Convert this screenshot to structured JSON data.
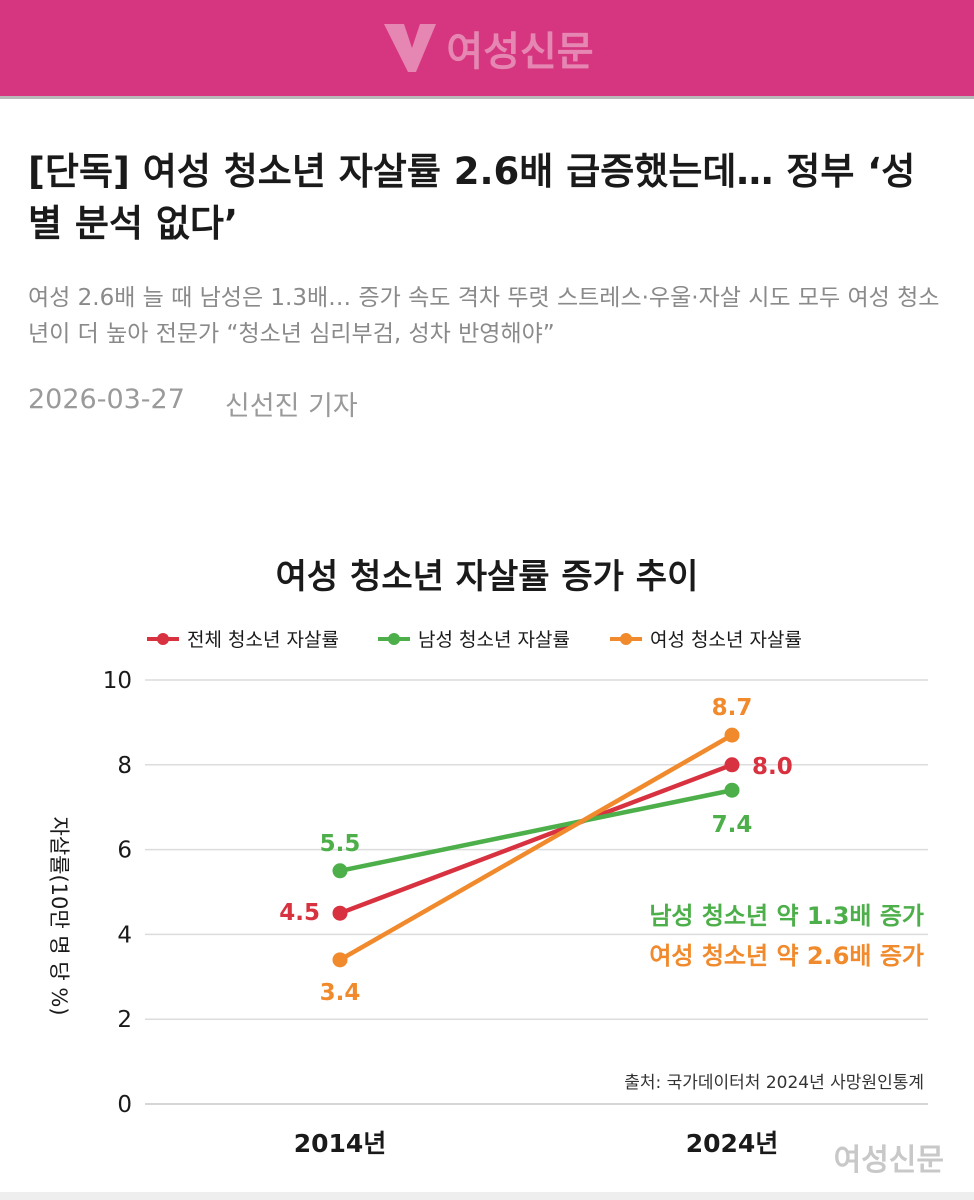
{
  "header": {
    "brand_name": "여성신문"
  },
  "article": {
    "headline": "[단독] 여성 청소년 자살률 2.6배 급증했는데… 정부 ‘성별 분석 없다’",
    "subheadline": "여성 2.6배 늘 때 남성은 1.3배… 증가 속도 격차 뚜렷 스트레스·우울·자살 시도 모두 여성 청소년이 더 높아 전문가 “청소년 심리부검, 성차 반영해야”",
    "date": "2026-03-27",
    "author": "신선진 기자"
  },
  "chart_data": {
    "type": "line",
    "title": "여성 청소년 자살률 증가 추이",
    "categories": [
      "2014년",
      "2024년"
    ],
    "ylabel": "자살률(10만 명 당 %)",
    "ylim": [
      0,
      10
    ],
    "yticks": [
      "0",
      "2",
      "4",
      "6",
      "8",
      "10"
    ],
    "grid": true,
    "legend_position": "top",
    "series": [
      {
        "name": "전체 청소년 자살률",
        "values": [
          4.5,
          8.0
        ],
        "labels": [
          "4.5",
          "8.0"
        ],
        "color": "#d8313f"
      },
      {
        "name": "남성 청소년 자살률",
        "values": [
          5.5,
          7.4
        ],
        "labels": [
          "5.5",
          "7.4"
        ],
        "color": "#4daf4a"
      },
      {
        "name": "여성 청소년 자살률",
        "values": [
          3.4,
          8.7
        ],
        "labels": [
          "3.4",
          "8.7"
        ],
        "color": "#f08a2c"
      }
    ],
    "annotations": [
      {
        "text": "남성 청소년 약 1.3배 증가",
        "color": "#4daf4a"
      },
      {
        "text": "여성 청소년 약 2.6배 증가",
        "color": "#f08a2c"
      }
    ],
    "source": "출처: 국가데이터처 2024년 사망원인통계"
  },
  "watermark": "여성신문"
}
